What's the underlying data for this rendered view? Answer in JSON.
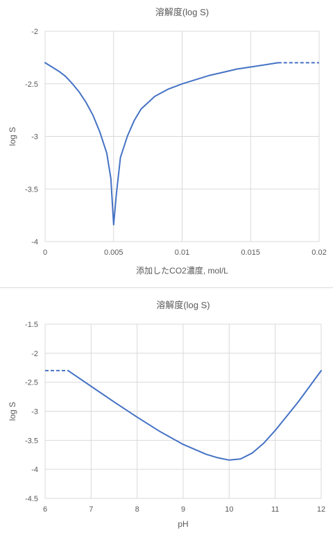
{
  "chart_data": [
    {
      "type": "line",
      "title": "溶解度(log S)",
      "xlabel": "添加したCO2濃度, mol/L",
      "ylabel": "log S",
      "xlim": [
        0,
        0.02
      ],
      "ylim": [
        -4,
        -2
      ],
      "xticks": [
        0,
        0.005,
        0.01,
        0.015,
        0.02
      ],
      "xtick_labels": [
        "0",
        "0.005",
        "0.01",
        "0.015",
        "0.02"
      ],
      "yticks": [
        -2,
        -2.5,
        -3,
        -3.5,
        -4
      ],
      "ytick_labels": [
        "-2",
        "-2.5",
        "-3",
        "-3.5",
        "-4"
      ],
      "grid": true,
      "line_color": "#4472c4",
      "series": [
        {
          "style": "solid",
          "points": [
            [
              0,
              -2.3
            ],
            [
              0.0005,
              -2.34
            ],
            [
              0.001,
              -2.38
            ],
            [
              0.0015,
              -2.43
            ],
            [
              0.002,
              -2.5
            ],
            [
              0.0025,
              -2.58
            ],
            [
              0.003,
              -2.68
            ],
            [
              0.0035,
              -2.8
            ],
            [
              0.004,
              -2.96
            ],
            [
              0.0045,
              -3.16
            ],
            [
              0.0048,
              -3.4
            ],
            [
              0.005,
              -3.84
            ],
            [
              0.0052,
              -3.55
            ],
            [
              0.0055,
              -3.2
            ],
            [
              0.006,
              -3.0
            ],
            [
              0.0065,
              -2.85
            ],
            [
              0.007,
              -2.74
            ],
            [
              0.008,
              -2.62
            ],
            [
              0.009,
              -2.55
            ],
            [
              0.01,
              -2.5
            ],
            [
              0.011,
              -2.46
            ],
            [
              0.012,
              -2.42
            ],
            [
              0.013,
              -2.39
            ],
            [
              0.014,
              -2.36
            ],
            [
              0.015,
              -2.34
            ],
            [
              0.016,
              -2.32
            ],
            [
              0.017,
              -2.3
            ]
          ]
        },
        {
          "style": "dashed",
          "points": [
            [
              0.017,
              -2.3
            ],
            [
              0.02,
              -2.3
            ]
          ]
        }
      ]
    },
    {
      "type": "line",
      "title": "溶解度(log S)",
      "xlabel": "pH",
      "ylabel": "log S",
      "xlim": [
        6,
        12
      ],
      "ylim": [
        -4.5,
        -1.5
      ],
      "xticks": [
        6,
        7,
        8,
        9,
        10,
        11,
        12
      ],
      "xtick_labels": [
        "6",
        "7",
        "8",
        "9",
        "10",
        "11",
        "12"
      ],
      "yticks": [
        -1.5,
        -2,
        -2.5,
        -3,
        -3.5,
        -4,
        -4.5
      ],
      "ytick_labels": [
        "-1.5",
        "-2",
        "-2.5",
        "-3",
        "-3.5",
        "-4",
        "-4.5"
      ],
      "grid": true,
      "line_color": "#4472c4",
      "series": [
        {
          "style": "dashed",
          "points": [
            [
              6,
              -2.3
            ],
            [
              6.5,
              -2.3
            ]
          ]
        },
        {
          "style": "solid",
          "points": [
            [
              6.5,
              -2.3
            ],
            [
              7,
              -2.57
            ],
            [
              7.5,
              -2.84
            ],
            [
              8,
              -3.1
            ],
            [
              8.5,
              -3.35
            ],
            [
              9,
              -3.57
            ],
            [
              9.5,
              -3.74
            ],
            [
              9.75,
              -3.8
            ],
            [
              10,
              -3.84
            ],
            [
              10.25,
              -3.82
            ],
            [
              10.5,
              -3.72
            ],
            [
              10.75,
              -3.55
            ],
            [
              11,
              -3.33
            ],
            [
              11.5,
              -2.84
            ],
            [
              12,
              -2.3
            ]
          ]
        }
      ]
    }
  ]
}
